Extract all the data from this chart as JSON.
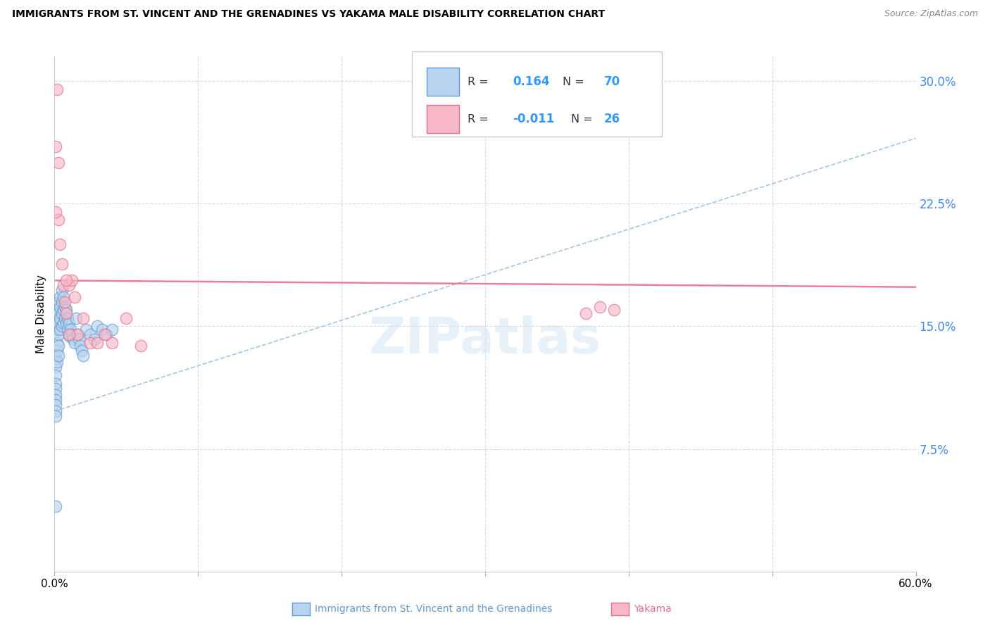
{
  "title": "IMMIGRANTS FROM ST. VINCENT AND THE GRENADINES VS YAKAMA MALE DISABILITY CORRELATION CHART",
  "source": "Source: ZipAtlas.com",
  "ylabel": "Male Disability",
  "xmin": 0.0,
  "xmax": 0.6,
  "ymin": 0.0,
  "ymax": 0.315,
  "blue_color": "#b8d4f0",
  "pink_color": "#f8b8c8",
  "blue_edge_color": "#6699cc",
  "pink_edge_color": "#e07090",
  "blue_trend_color": "#99bbdd",
  "pink_trend_color": "#e87090",
  "ytick_vals": [
    0.075,
    0.15,
    0.225,
    0.3
  ],
  "ytick_labs": [
    "7.5%",
    "15.0%",
    "22.5%",
    "30.0%"
  ],
  "blue_scatter_x": [
    0.001,
    0.001,
    0.001,
    0.001,
    0.001,
    0.001,
    0.001,
    0.001,
    0.001,
    0.001,
    0.002,
    0.002,
    0.002,
    0.002,
    0.002,
    0.002,
    0.003,
    0.003,
    0.003,
    0.003,
    0.003,
    0.003,
    0.004,
    0.004,
    0.004,
    0.004,
    0.005,
    0.005,
    0.005,
    0.005,
    0.006,
    0.006,
    0.006,
    0.007,
    0.007,
    0.008,
    0.008,
    0.009,
    0.009,
    0.01,
    0.01,
    0.011,
    0.012,
    0.013,
    0.014,
    0.015,
    0.016,
    0.017,
    0.018,
    0.019,
    0.02,
    0.022,
    0.025,
    0.028,
    0.03,
    0.033,
    0.036,
    0.04,
    0.001
  ],
  "blue_scatter_y": [
    0.13,
    0.125,
    0.12,
    0.115,
    0.112,
    0.108,
    0.105,
    0.102,
    0.098,
    0.095,
    0.16,
    0.155,
    0.148,
    0.14,
    0.135,
    0.128,
    0.165,
    0.158,
    0.152,
    0.145,
    0.138,
    0.132,
    0.168,
    0.162,
    0.155,
    0.148,
    0.172,
    0.165,
    0.158,
    0.15,
    0.168,
    0.16,
    0.152,
    0.162,
    0.155,
    0.16,
    0.152,
    0.155,
    0.148,
    0.152,
    0.144,
    0.148,
    0.145,
    0.142,
    0.14,
    0.155,
    0.145,
    0.142,
    0.138,
    0.135,
    0.132,
    0.148,
    0.145,
    0.142,
    0.15,
    0.148,
    0.145,
    0.148,
    0.04
  ],
  "pink_scatter_x": [
    0.002,
    0.003,
    0.003,
    0.004,
    0.005,
    0.006,
    0.007,
    0.008,
    0.01,
    0.012,
    0.014,
    0.016,
    0.02,
    0.025,
    0.03,
    0.035,
    0.04,
    0.05,
    0.06,
    0.37,
    0.38,
    0.39,
    0.001,
    0.001,
    0.008,
    0.01
  ],
  "pink_scatter_y": [
    0.295,
    0.25,
    0.215,
    0.2,
    0.188,
    0.175,
    0.165,
    0.158,
    0.175,
    0.178,
    0.168,
    0.145,
    0.155,
    0.14,
    0.14,
    0.145,
    0.14,
    0.155,
    0.138,
    0.158,
    0.162,
    0.16,
    0.26,
    0.22,
    0.178,
    0.145
  ],
  "blue_trend": [
    0.0,
    0.6,
    0.098,
    0.265
  ],
  "pink_trend": [
    0.0,
    0.6,
    0.178,
    0.174
  ]
}
